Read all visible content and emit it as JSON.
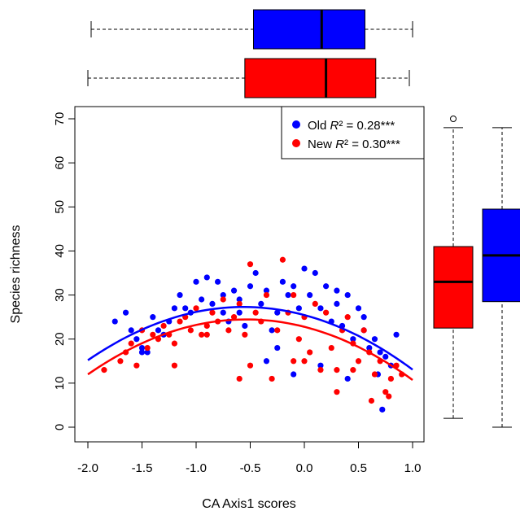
{
  "chart_data": {
    "type": "scatter",
    "xlabel": "CA Axis1 scores",
    "ylabel": "Species richness",
    "xlim": [
      -2.0,
      1.0
    ],
    "ylim": [
      0,
      70
    ],
    "x_ticks": [
      "-2.0",
      "-1.5",
      "-1.0",
      "-0.5",
      "0.0",
      "0.5",
      "1.0"
    ],
    "y_ticks": [
      "0",
      "10",
      "20",
      "30",
      "40",
      "50",
      "60",
      "70"
    ],
    "grid": false,
    "legend_position": "top-right",
    "legend": [
      {
        "prefix": "Old ",
        "r": "R",
        "stat": "² = 0.28***",
        "color": "#0000ff"
      },
      {
        "prefix": "New ",
        "r": "R",
        "stat": "² = 0.30***",
        "color": "#ff0000"
      }
    ],
    "series": [
      {
        "key": "old",
        "color": "#0000ff",
        "fit_curve": {
          "x": [
            -2.0,
            -1.5,
            -1.0,
            -0.5,
            0.0,
            0.5,
            1.0
          ],
          "y": [
            15.3,
            22.2,
            25.9,
            27.0,
            25.8,
            21.0,
            12.8
          ]
        },
        "x_boxplot": {
          "min": -1.97,
          "q1": -0.47,
          "median": 0.16,
          "q3": 0.56,
          "max": 1.0
        },
        "y_boxplot": {
          "min": 0,
          "q1": 28.5,
          "median": 39,
          "q3": 49.5,
          "max": 68
        },
        "points": [
          [
            -1.75,
            24
          ],
          [
            -1.65,
            26
          ],
          [
            -1.6,
            22
          ],
          [
            -1.55,
            20
          ],
          [
            -1.5,
            18
          ],
          [
            -1.45,
            17
          ],
          [
            -1.4,
            25
          ],
          [
            -1.35,
            22
          ],
          [
            -1.3,
            21
          ],
          [
            -1.25,
            24
          ],
          [
            -1.2,
            27
          ],
          [
            -1.15,
            30
          ],
          [
            -1.1,
            27
          ],
          [
            -1.05,
            26
          ],
          [
            -1.0,
            33
          ],
          [
            -0.95,
            29
          ],
          [
            -0.9,
            34
          ],
          [
            -0.85,
            28
          ],
          [
            -0.8,
            33
          ],
          [
            -0.75,
            26
          ],
          [
            -0.7,
            24
          ],
          [
            -0.65,
            31
          ],
          [
            -0.6,
            29
          ],
          [
            -0.55,
            23
          ],
          [
            -0.5,
            32
          ],
          [
            -0.45,
            35
          ],
          [
            -0.4,
            28
          ],
          [
            -0.35,
            31
          ],
          [
            -0.3,
            22
          ],
          [
            -0.25,
            26
          ],
          [
            -0.2,
            33
          ],
          [
            -0.15,
            30
          ],
          [
            -0.1,
            32
          ],
          [
            -0.05,
            27
          ],
          [
            0.0,
            36
          ],
          [
            0.05,
            30
          ],
          [
            0.1,
            35
          ],
          [
            0.15,
            27
          ],
          [
            0.2,
            32
          ],
          [
            0.25,
            24
          ],
          [
            0.3,
            28
          ],
          [
            0.35,
            23
          ],
          [
            0.4,
            30
          ],
          [
            0.45,
            20
          ],
          [
            0.5,
            27
          ],
          [
            0.55,
            22
          ],
          [
            0.6,
            18
          ],
          [
            0.65,
            20
          ],
          [
            0.7,
            17
          ],
          [
            0.75,
            16
          ],
          [
            0.8,
            14
          ],
          [
            0.85,
            21
          ],
          [
            0.72,
            4
          ],
          [
            -0.35,
            15
          ],
          [
            -0.1,
            12
          ],
          [
            0.15,
            14
          ],
          [
            0.4,
            11
          ],
          [
            -1.5,
            17
          ],
          [
            -0.6,
            26
          ],
          [
            0.3,
            31
          ],
          [
            0.55,
            25
          ],
          [
            -0.25,
            18
          ],
          [
            -0.75,
            30
          ],
          [
            0.68,
            12
          ]
        ]
      },
      {
        "key": "new",
        "color": "#ff0000",
        "fit_curve": {
          "x": [
            -2.0,
            -1.5,
            -1.0,
            -0.5,
            0.0,
            0.5,
            1.0
          ],
          "y": [
            12.2,
            18.8,
            23.0,
            24.5,
            23.1,
            18.2,
            10.6
          ]
        },
        "x_boxplot": {
          "min": -2.0,
          "q1": -0.55,
          "median": 0.2,
          "q3": 0.66,
          "max": 0.97
        },
        "y_boxplot": {
          "min": 2,
          "q1": 22.5,
          "median": 33,
          "q3": 41,
          "max": 68,
          "outliers": [
            70
          ]
        },
        "points": [
          [
            -1.85,
            13
          ],
          [
            -1.7,
            15
          ],
          [
            -1.65,
            17
          ],
          [
            -1.6,
            19
          ],
          [
            -1.55,
            14
          ],
          [
            -1.5,
            22
          ],
          [
            -1.45,
            18
          ],
          [
            -1.4,
            21
          ],
          [
            -1.35,
            20
          ],
          [
            -1.3,
            23
          ],
          [
            -1.25,
            21
          ],
          [
            -1.2,
            19
          ],
          [
            -1.15,
            24
          ],
          [
            -1.1,
            25
          ],
          [
            -1.05,
            22
          ],
          [
            -1.0,
            27
          ],
          [
            -0.95,
            21
          ],
          [
            -0.9,
            23
          ],
          [
            -0.85,
            26
          ],
          [
            -0.8,
            24
          ],
          [
            -0.75,
            29
          ],
          [
            -0.7,
            22
          ],
          [
            -0.65,
            25
          ],
          [
            -0.6,
            28
          ],
          [
            -0.55,
            21
          ],
          [
            -0.5,
            37
          ],
          [
            -0.45,
            26
          ],
          [
            -0.4,
            24
          ],
          [
            -0.35,
            30
          ],
          [
            -0.3,
            11
          ],
          [
            -0.25,
            22
          ],
          [
            -0.2,
            38
          ],
          [
            -0.15,
            26
          ],
          [
            -0.1,
            30
          ],
          [
            -0.05,
            20
          ],
          [
            0.0,
            25
          ],
          [
            0.05,
            17
          ],
          [
            0.1,
            28
          ],
          [
            0.15,
            13
          ],
          [
            0.2,
            26
          ],
          [
            0.25,
            18
          ],
          [
            0.3,
            13
          ],
          [
            0.35,
            22
          ],
          [
            0.4,
            25
          ],
          [
            0.45,
            19
          ],
          [
            0.5,
            15
          ],
          [
            0.55,
            22
          ],
          [
            0.6,
            17
          ],
          [
            0.65,
            12
          ],
          [
            0.7,
            15
          ],
          [
            0.75,
            8
          ],
          [
            0.8,
            11
          ],
          [
            0.85,
            14
          ],
          [
            0.9,
            12
          ],
          [
            -0.6,
            11
          ],
          [
            0.0,
            15
          ],
          [
            -1.2,
            14
          ],
          [
            -0.5,
            14
          ],
          [
            0.3,
            8
          ],
          [
            0.62,
            6
          ],
          [
            0.78,
            7
          ],
          [
            -0.1,
            15
          ],
          [
            0.45,
            13
          ],
          [
            -0.9,
            21
          ]
        ]
      }
    ]
  }
}
